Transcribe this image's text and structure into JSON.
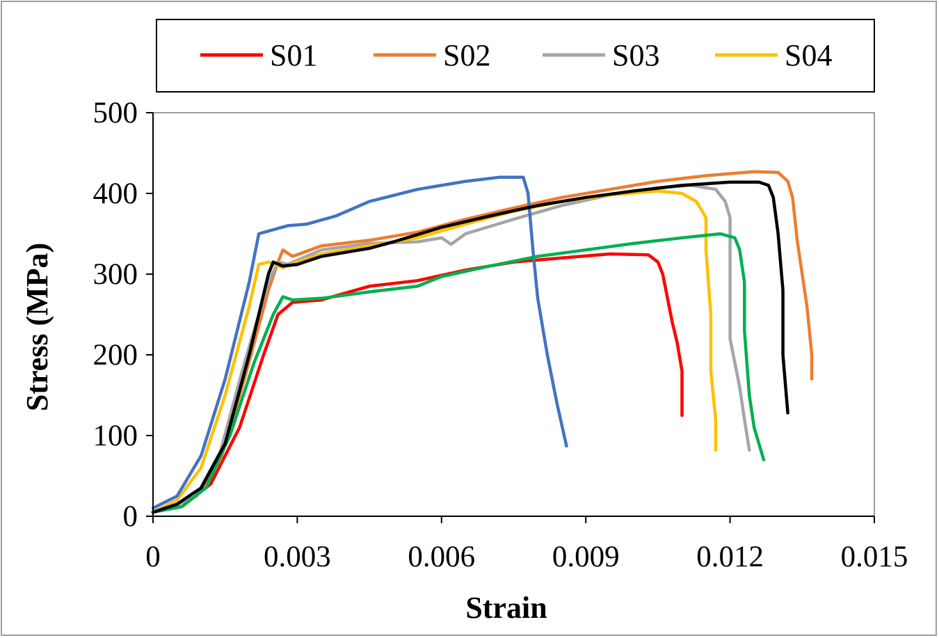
{
  "chart_data": {
    "type": "line",
    "title": "",
    "xlabel": "Strain",
    "ylabel": "Stress (MPa)",
    "xlim": [
      0,
      0.015
    ],
    "ylim": [
      0,
      500
    ],
    "x_ticks": [
      "0",
      "0.003",
      "0.006",
      "0.009",
      "0.012",
      "0.015"
    ],
    "y_ticks": [
      "0",
      "100",
      "200",
      "300",
      "400",
      "500"
    ],
    "grid": false,
    "legend_position": "top",
    "legend": [
      {
        "name": "S01",
        "color": "#ff0000"
      },
      {
        "name": "S02",
        "color": "#ed7d31"
      },
      {
        "name": "S03",
        "color": "#a5a5a5"
      },
      {
        "name": "S04",
        "color": "#ffc000"
      }
    ],
    "series": [
      {
        "name": "S01",
        "color": "#ff0000",
        "points": [
          [
            0,
            5
          ],
          [
            0.0006,
            12
          ],
          [
            0.0012,
            40
          ],
          [
            0.0018,
            110
          ],
          [
            0.0023,
            200
          ],
          [
            0.0026,
            250
          ],
          [
            0.0029,
            265
          ],
          [
            0.0035,
            268
          ],
          [
            0.0045,
            285
          ],
          [
            0.0055,
            292
          ],
          [
            0.0065,
            305
          ],
          [
            0.0075,
            315
          ],
          [
            0.0085,
            320
          ],
          [
            0.0095,
            325
          ],
          [
            0.0103,
            324
          ],
          [
            0.0105,
            315
          ],
          [
            0.0106,
            300
          ],
          [
            0.0107,
            270
          ],
          [
            0.0108,
            240
          ],
          [
            0.0109,
            215
          ],
          [
            0.011,
            180
          ],
          [
            0.011,
            125
          ]
        ]
      },
      {
        "name": "S02",
        "color": "#ed7d31",
        "points": [
          [
            0,
            5
          ],
          [
            0.0004,
            12
          ],
          [
            0.0009,
            25
          ],
          [
            0.0014,
            70
          ],
          [
            0.0019,
            170
          ],
          [
            0.0024,
            280
          ],
          [
            0.0026,
            315
          ],
          [
            0.0027,
            330
          ],
          [
            0.0029,
            322
          ],
          [
            0.0035,
            335
          ],
          [
            0.0045,
            342
          ],
          [
            0.0055,
            352
          ],
          [
            0.0065,
            368
          ],
          [
            0.0075,
            382
          ],
          [
            0.0085,
            395
          ],
          [
            0.0095,
            405
          ],
          [
            0.0105,
            415
          ],
          [
            0.0115,
            422
          ],
          [
            0.0125,
            427
          ],
          [
            0.013,
            426
          ],
          [
            0.0132,
            415
          ],
          [
            0.0133,
            395
          ],
          [
            0.0134,
            340
          ],
          [
            0.0136,
            260
          ],
          [
            0.0137,
            200
          ],
          [
            0.0137,
            170
          ]
        ]
      },
      {
        "name": "S03",
        "color": "#a5a5a5",
        "points": [
          [
            0,
            5
          ],
          [
            0.0004,
            12
          ],
          [
            0.0009,
            25
          ],
          [
            0.0014,
            80
          ],
          [
            0.0019,
            190
          ],
          [
            0.0024,
            290
          ],
          [
            0.0026,
            315
          ],
          [
            0.0028,
            312
          ],
          [
            0.0035,
            330
          ],
          [
            0.0045,
            338
          ],
          [
            0.0055,
            340
          ],
          [
            0.006,
            345
          ],
          [
            0.0062,
            337
          ],
          [
            0.0065,
            350
          ],
          [
            0.0075,
            368
          ],
          [
            0.0085,
            385
          ],
          [
            0.0095,
            398
          ],
          [
            0.0105,
            407
          ],
          [
            0.0112,
            410
          ],
          [
            0.0117,
            405
          ],
          [
            0.0119,
            390
          ],
          [
            0.012,
            370
          ],
          [
            0.012,
            300
          ],
          [
            0.012,
            220
          ],
          [
            0.0122,
            160
          ],
          [
            0.0123,
            120
          ],
          [
            0.0124,
            82
          ]
        ]
      },
      {
        "name": "S04",
        "color": "#ffc000",
        "points": [
          [
            0,
            5
          ],
          [
            0.0005,
            20
          ],
          [
            0.001,
            60
          ],
          [
            0.0015,
            150
          ],
          [
            0.002,
            260
          ],
          [
            0.0022,
            312
          ],
          [
            0.0024,
            315
          ],
          [
            0.0027,
            308
          ],
          [
            0.003,
            315
          ],
          [
            0.0035,
            325
          ],
          [
            0.0045,
            335
          ],
          [
            0.0055,
            345
          ],
          [
            0.0065,
            362
          ],
          [
            0.0075,
            378
          ],
          [
            0.0085,
            390
          ],
          [
            0.0095,
            398
          ],
          [
            0.0105,
            403
          ],
          [
            0.011,
            400
          ],
          [
            0.0113,
            390
          ],
          [
            0.0115,
            370
          ],
          [
            0.0115,
            330
          ],
          [
            0.0116,
            250
          ],
          [
            0.0116,
            180
          ],
          [
            0.0117,
            120
          ],
          [
            0.0117,
            82
          ]
        ]
      },
      {
        "color": "#4472c4",
        "points": [
          [
            0,
            10
          ],
          [
            0.0005,
            25
          ],
          [
            0.001,
            75
          ],
          [
            0.0015,
            170
          ],
          [
            0.002,
            290
          ],
          [
            0.0022,
            350
          ],
          [
            0.0025,
            355
          ],
          [
            0.0028,
            360
          ],
          [
            0.0032,
            362
          ],
          [
            0.0038,
            372
          ],
          [
            0.0045,
            390
          ],
          [
            0.0055,
            405
          ],
          [
            0.0065,
            415
          ],
          [
            0.0072,
            420
          ],
          [
            0.0077,
            420
          ],
          [
            0.0078,
            400
          ],
          [
            0.0079,
            330
          ],
          [
            0.008,
            270
          ],
          [
            0.0082,
            200
          ],
          [
            0.0084,
            140
          ],
          [
            0.0086,
            87
          ]
        ]
      },
      {
        "color": "#00b050",
        "points": [
          [
            0,
            5
          ],
          [
            0.0006,
            12
          ],
          [
            0.0011,
            35
          ],
          [
            0.0016,
            100
          ],
          [
            0.0021,
            190
          ],
          [
            0.0025,
            250
          ],
          [
            0.0027,
            272
          ],
          [
            0.0029,
            268
          ],
          [
            0.0035,
            270
          ],
          [
            0.0045,
            278
          ],
          [
            0.0055,
            285
          ],
          [
            0.006,
            297
          ],
          [
            0.007,
            310
          ],
          [
            0.008,
            322
          ],
          [
            0.009,
            330
          ],
          [
            0.01,
            338
          ],
          [
            0.011,
            345
          ],
          [
            0.0118,
            350
          ],
          [
            0.0121,
            345
          ],
          [
            0.0122,
            330
          ],
          [
            0.0123,
            290
          ],
          [
            0.0123,
            230
          ],
          [
            0.0124,
            150
          ],
          [
            0.0125,
            110
          ],
          [
            0.0127,
            70
          ]
        ]
      },
      {
        "color": "#000000",
        "points": [
          [
            0,
            5
          ],
          [
            0.0005,
            15
          ],
          [
            0.001,
            35
          ],
          [
            0.0015,
            90
          ],
          [
            0.002,
            200
          ],
          [
            0.0024,
            300
          ],
          [
            0.0025,
            315
          ],
          [
            0.0027,
            310
          ],
          [
            0.003,
            312
          ],
          [
            0.0035,
            322
          ],
          [
            0.0045,
            332
          ],
          [
            0.005,
            340
          ],
          [
            0.006,
            358
          ],
          [
            0.007,
            372
          ],
          [
            0.008,
            385
          ],
          [
            0.009,
            395
          ],
          [
            0.01,
            403
          ],
          [
            0.011,
            410
          ],
          [
            0.012,
            414
          ],
          [
            0.0126,
            414
          ],
          [
            0.0128,
            410
          ],
          [
            0.0129,
            395
          ],
          [
            0.013,
            350
          ],
          [
            0.0131,
            280
          ],
          [
            0.0131,
            200
          ],
          [
            0.0132,
            128
          ]
        ]
      }
    ]
  }
}
